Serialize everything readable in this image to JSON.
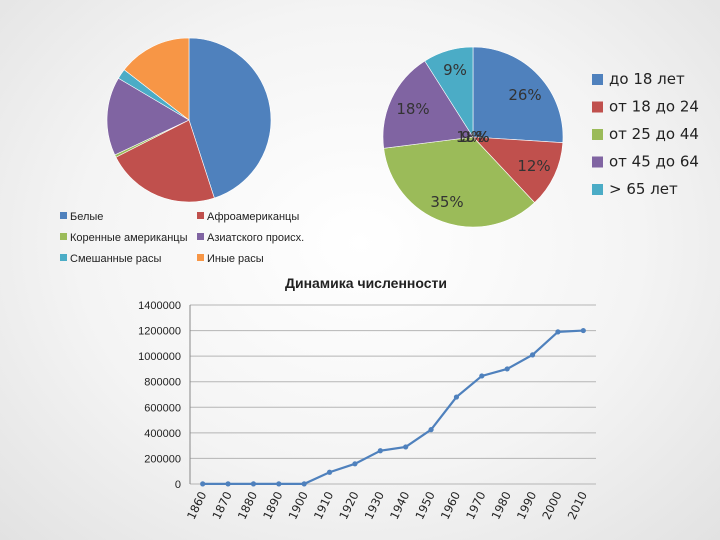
{
  "chart_data": [
    {
      "type": "pie",
      "title": "",
      "labels": [
        "Белые",
        "Афроамериканцы",
        "Коренные американцы",
        "Азиатского происх.",
        "Смешанные расы",
        "Иные расы"
      ],
      "values": [
        45.0,
        22.5,
        0.5,
        15.5,
        2.0,
        14.5
      ],
      "colors": [
        "#4F81BD",
        "#C0504D",
        "#9BBB59",
        "#8064A2",
        "#4BACC6",
        "#F79646"
      ],
      "legend_position": "bottom"
    },
    {
      "type": "pie",
      "title": "",
      "labels": [
        "до 18 лет",
        "от 18 до 24",
        "от 25 до 44",
        "от 45 до 64",
        "> 65 лет"
      ],
      "values": [
        26,
        12,
        35,
        18,
        9
      ],
      "data_labels": [
        "26%",
        "12%",
        "35%",
        "18%",
        "9%"
      ],
      "colors": [
        "#4F81BD",
        "#C0504D",
        "#9BBB59",
        "#8064A2",
        "#4BACC6"
      ],
      "legend_position": "right"
    },
    {
      "type": "line",
      "title": "Динамика численности",
      "x": [
        "1860",
        "1870",
        "1880",
        "1890",
        "1900",
        "1910",
        "1920",
        "1930",
        "1940",
        "1950",
        "1960",
        "1970",
        "1980",
        "1990",
        "2000",
        "2010"
      ],
      "series": [
        {
          "values": [
            1000,
            1000,
            1000,
            1000,
            1000,
            92000,
            158000,
            260000,
            290000,
            425000,
            680000,
            845000,
            900000,
            1010000,
            1190000,
            1200000
          ],
          "color": "#4F81BD"
        }
      ],
      "ylim": [
        0,
        1400000
      ],
      "yticks": [
        "0",
        "200000",
        "400000",
        "600000",
        "800000",
        "1000000",
        "1200000",
        "1400000"
      ],
      "grid": true,
      "xlabel": "",
      "ylabel": ""
    }
  ]
}
